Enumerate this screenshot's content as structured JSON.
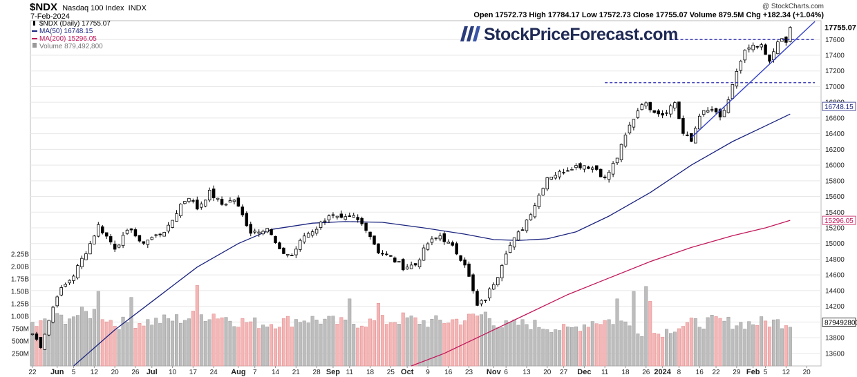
{
  "header": {
    "symbol": "$NDX",
    "name": "Nasdaq 100 Index",
    "exchange": "INDX",
    "date": "7-Feb-2024",
    "copyright": "@ StockCharts.com",
    "ohlc": "Open 17572.73 High 17784.17 Low 17572.73 Close 17755.07 Volume 879.5M Chg +182.34 (+1.04%)"
  },
  "legend": [
    {
      "text": "$NDX (Daily) 17755.07",
      "color": "#000000",
      "icon": "candle-icon"
    },
    {
      "text": "MA(50) 16748.15",
      "color": "#1a237e",
      "icon": "line-swatch-icon"
    },
    {
      "text": "MA(200) 15296.05",
      "color": "#c2185b",
      "icon": "line-swatch-icon"
    },
    {
      "text": "Volume 879,492,800",
      "color": "#777777",
      "icon": "bar-swatch-icon"
    }
  ],
  "watermark": "StockPriceForecast.com",
  "watermark_suffix": "",
  "chart_data": {
    "type": "candlestick",
    "ylim": [
      13440,
      17840
    ],
    "y_ticks": [
      13600,
      13800,
      14000,
      14200,
      14400,
      14600,
      14800,
      15000,
      15200,
      15400,
      15600,
      15800,
      16000,
      16200,
      16400,
      16600,
      16800,
      17000,
      17200,
      17400,
      17600
    ],
    "y_tick_labels": [
      "13600",
      "13800",
      "14000",
      "14200",
      "14400",
      "14600",
      "14800",
      "15000",
      "15200",
      "15400",
      "15600",
      "15800",
      "16000",
      "16200",
      "16400",
      "16600",
      "16800",
      "17000",
      "17200",
      "17400",
      "17600"
    ],
    "volume_ticks": [
      250,
      500,
      750,
      1000,
      1250,
      1500,
      1750,
      2000,
      2250
    ],
    "volume_tick_labels": [
      "250M",
      "500M",
      "750M",
      "1.00B",
      "1.25B",
      "1.50B",
      "1.75B",
      "2.00B",
      "2.25B"
    ],
    "x_labels": [
      {
        "label": "22",
        "bar": 0,
        "bold": false
      },
      {
        "label": "Jun",
        "bar": 6,
        "bold": true
      },
      {
        "label": "5",
        "bar": 10,
        "bold": false
      },
      {
        "label": "12",
        "bar": 15,
        "bold": false
      },
      {
        "label": "20",
        "bar": 20,
        "bold": false
      },
      {
        "label": "26",
        "bar": 25,
        "bold": false
      },
      {
        "label": "Jul",
        "bar": 29,
        "bold": true
      },
      {
        "label": "10",
        "bar": 34,
        "bold": false
      },
      {
        "label": "17",
        "bar": 39,
        "bold": false
      },
      {
        "label": "24",
        "bar": 44,
        "bold": false
      },
      {
        "label": "Aug",
        "bar": 50,
        "bold": true
      },
      {
        "label": "7",
        "bar": 54,
        "bold": false
      },
      {
        "label": "14",
        "bar": 59,
        "bold": false
      },
      {
        "label": "21",
        "bar": 64,
        "bold": false
      },
      {
        "label": "28",
        "bar": 69,
        "bold": false
      },
      {
        "label": "Sep",
        "bar": 73,
        "bold": true
      },
      {
        "label": "11",
        "bar": 77,
        "bold": false
      },
      {
        "label": "18",
        "bar": 82,
        "bold": false
      },
      {
        "label": "25",
        "bar": 87,
        "bold": false
      },
      {
        "label": "Oct",
        "bar": 91,
        "bold": true
      },
      {
        "label": "9",
        "bar": 96,
        "bold": false
      },
      {
        "label": "16",
        "bar": 101,
        "bold": false
      },
      {
        "label": "23",
        "bar": 106,
        "bold": false
      },
      {
        "label": "Nov",
        "bar": 112,
        "bold": true
      },
      {
        "label": "6",
        "bar": 115,
        "bold": false
      },
      {
        "label": "13",
        "bar": 120,
        "bold": false
      },
      {
        "label": "20",
        "bar": 125,
        "bold": false
      },
      {
        "label": "27",
        "bar": 129,
        "bold": false
      },
      {
        "label": "Dec",
        "bar": 134,
        "bold": true
      },
      {
        "label": "11",
        "bar": 139,
        "bold": false
      },
      {
        "label": "18",
        "bar": 144,
        "bold": false
      },
      {
        "label": "26",
        "bar": 149,
        "bold": false
      },
      {
        "label": "2024",
        "bar": 153,
        "bold": true
      },
      {
        "label": "8",
        "bar": 157,
        "bold": false
      },
      {
        "label": "16",
        "bar": 162,
        "bold": false
      },
      {
        "label": "22",
        "bar": 166,
        "bold": false
      },
      {
        "label": "29",
        "bar": 171,
        "bold": false
      },
      {
        "label": "Feb",
        "bar": 175,
        "bold": true
      },
      {
        "label": "5",
        "bar": 178,
        "bold": false
      },
      {
        "label": "12",
        "bar": 183,
        "bold": false
      },
      {
        "label": "20",
        "bar": 188,
        "bold": false
      }
    ],
    "total_slots": 192,
    "anchors": [
      [
        0,
        13850
      ],
      [
        2,
        13700
      ],
      [
        6,
        14350
      ],
      [
        10,
        14600
      ],
      [
        14,
        15000
      ],
      [
        16,
        15230
      ],
      [
        20,
        14950
      ],
      [
        24,
        15200
      ],
      [
        26,
        15000
      ],
      [
        30,
        15100
      ],
      [
        33,
        15200
      ],
      [
        36,
        15500
      ],
      [
        38,
        15600
      ],
      [
        40,
        15450
      ],
      [
        43,
        15650
      ],
      [
        46,
        15500
      ],
      [
        49,
        15560
      ],
      [
        53,
        15150
      ],
      [
        57,
        15200
      ],
      [
        60,
        14900
      ],
      [
        63,
        14850
      ],
      [
        66,
        15100
      ],
      [
        69,
        15200
      ],
      [
        72,
        15370
      ],
      [
        75,
        15300
      ],
      [
        78,
        15340
      ],
      [
        81,
        15200
      ],
      [
        84,
        14900
      ],
      [
        87,
        14820
      ],
      [
        90,
        14700
      ],
      [
        93,
        14730
      ],
      [
        96,
        15000
      ],
      [
        99,
        15100
      ],
      [
        102,
        14950
      ],
      [
        105,
        14750
      ],
      [
        108,
        14200
      ],
      [
        110,
        14300
      ],
      [
        113,
        14600
      ],
      [
        115,
        14900
      ],
      [
        119,
        15200
      ],
      [
        122,
        15500
      ],
      [
        125,
        15850
      ],
      [
        128,
        15900
      ],
      [
        131,
        15980
      ],
      [
        134,
        16000
      ],
      [
        137,
        15950
      ],
      [
        139,
        15820
      ],
      [
        142,
        16100
      ],
      [
        145,
        16500
      ],
      [
        148,
        16800
      ],
      [
        151,
        16700
      ],
      [
        153,
        16650
      ],
      [
        156,
        16800
      ],
      [
        158,
        16400
      ],
      [
        160,
        16300
      ],
      [
        162,
        16650
      ],
      [
        165,
        16700
      ],
      [
        167,
        16600
      ],
      [
        169,
        16800
      ],
      [
        171,
        17200
      ],
      [
        173,
        17450
      ],
      [
        175,
        17500
      ],
      [
        177,
        17500
      ],
      [
        179,
        17300
      ],
      [
        181,
        17600
      ],
      [
        183,
        17560
      ],
      [
        184,
        17755
      ]
    ],
    "volume_profile": [
      [
        0,
        800
      ],
      [
        6,
        950
      ],
      [
        10,
        1000
      ],
      [
        16,
        1100
      ],
      [
        20,
        850
      ],
      [
        24,
        880
      ],
      [
        30,
        900
      ],
      [
        36,
        950
      ],
      [
        40,
        1000
      ],
      [
        44,
        1050
      ],
      [
        50,
        900
      ],
      [
        56,
        850
      ],
      [
        60,
        880
      ],
      [
        66,
        950
      ],
      [
        70,
        920
      ],
      [
        76,
        850
      ],
      [
        80,
        880
      ],
      [
        86,
        900
      ],
      [
        90,
        950
      ],
      [
        96,
        880
      ],
      [
        100,
        900
      ],
      [
        106,
        950
      ],
      [
        110,
        1050
      ],
      [
        114,
        800
      ],
      [
        120,
        850
      ],
      [
        126,
        780
      ],
      [
        130,
        720
      ],
      [
        136,
        900
      ],
      [
        142,
        920
      ],
      [
        148,
        700
      ],
      [
        152,
        650
      ],
      [
        156,
        780
      ],
      [
        160,
        850
      ],
      [
        166,
        900
      ],
      [
        172,
        850
      ],
      [
        178,
        880
      ],
      [
        184,
        880
      ]
    ],
    "volume_spikes": [
      [
        0,
        880
      ],
      [
        11,
        1020
      ],
      [
        16,
        1500
      ],
      [
        24,
        1380
      ],
      [
        40,
        1620
      ],
      [
        77,
        1350
      ],
      [
        84,
        1260
      ],
      [
        142,
        1350
      ],
      [
        146,
        1500
      ],
      [
        149,
        1600
      ],
      [
        150,
        1300
      ]
    ],
    "ma50": [
      [
        10,
        13440
      ],
      [
        20,
        13900
      ],
      [
        30,
        14300
      ],
      [
        40,
        14700
      ],
      [
        50,
        15000
      ],
      [
        58,
        15180
      ],
      [
        68,
        15260
      ],
      [
        76,
        15280
      ],
      [
        85,
        15270
      ],
      [
        95,
        15200
      ],
      [
        105,
        15120
      ],
      [
        112,
        15050
      ],
      [
        118,
        15040
      ],
      [
        125,
        15060
      ],
      [
        132,
        15150
      ],
      [
        140,
        15350
      ],
      [
        150,
        15650
      ],
      [
        160,
        16000
      ],
      [
        170,
        16300
      ],
      [
        178,
        16500
      ],
      [
        184,
        16650
      ]
    ],
    "ma200": [
      [
        92,
        13440
      ],
      [
        100,
        13600
      ],
      [
        110,
        13850
      ],
      [
        120,
        14100
      ],
      [
        130,
        14350
      ],
      [
        140,
        14560
      ],
      [
        150,
        14770
      ],
      [
        160,
        14950
      ],
      [
        170,
        15100
      ],
      [
        178,
        15200
      ],
      [
        184,
        15296
      ]
    ],
    "resistance_lines": [
      {
        "y": 17600,
        "from": 155,
        "to": 190
      },
      {
        "y": 17050,
        "from": 139,
        "to": 190
      }
    ],
    "trend_line": {
      "from": [
        160,
        16350
      ],
      "to": [
        190,
        17830
      ]
    },
    "labels": [
      {
        "value": 17755.07,
        "text": "17755.07",
        "style": "bold",
        "color": "#000000"
      },
      {
        "value": 16748.15,
        "text": "16748.15",
        "style": "box",
        "color": "#1a237e"
      },
      {
        "value": 15296.05,
        "text": "15296.05",
        "style": "box",
        "color": "#c2185b"
      },
      {
        "value": 879492800,
        "text": "879492800",
        "style": "vbox",
        "color": "#000000"
      }
    ],
    "colors": {
      "up": "#000000",
      "down": "#000000",
      "vol_up": "#bdbdbd",
      "vol_down": "#f4b6b6",
      "ma50": "#1a237e",
      "ma200": "#c2185b",
      "trend": "#3340c8",
      "dash": "#2a2ab0",
      "grid": "#e8e8e8"
    }
  }
}
